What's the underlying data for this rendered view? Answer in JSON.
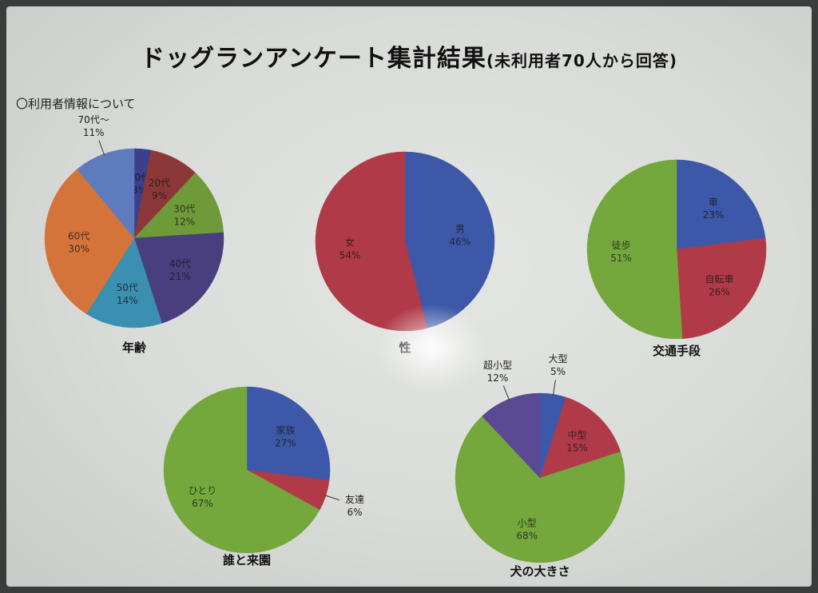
{
  "header": {
    "title": "ドッグランアンケート集計結果",
    "subtitle": "(未利用者70人から回答)",
    "section": "〇利用者情報について"
  },
  "chart_data": [
    {
      "type": "pie",
      "title": "年齢",
      "slices": [
        {
          "label": "10代",
          "value": 3,
          "color": "#3b3f8c"
        },
        {
          "label": "20代",
          "value": 9,
          "color": "#8c3838"
        },
        {
          "label": "30代",
          "value": 12,
          "color": "#6f9a3a"
        },
        {
          "label": "40代",
          "value": 21,
          "color": "#4a3f7e"
        },
        {
          "label": "50代",
          "value": 14,
          "color": "#3b8fb0"
        },
        {
          "label": "60代",
          "value": 30,
          "color": "#d4743a"
        },
        {
          "label": "70代〜",
          "value": 11,
          "color": "#5e7bbd"
        }
      ]
    },
    {
      "type": "pie",
      "title": "性",
      "slices": [
        {
          "label": "男",
          "value": 46,
          "color": "#3d58a8"
        },
        {
          "label": "女",
          "value": 54,
          "color": "#b03a48"
        }
      ]
    },
    {
      "type": "pie",
      "title": "交通手段",
      "slices": [
        {
          "label": "車",
          "value": 23,
          "color": "#3d58a8"
        },
        {
          "label": "自転車",
          "value": 26,
          "color": "#b03a48"
        },
        {
          "label": "徒歩",
          "value": 51,
          "color": "#74a83d"
        }
      ]
    },
    {
      "type": "pie",
      "title": "誰と来園",
      "slices": [
        {
          "label": "家族",
          "value": 27,
          "color": "#3d58a8"
        },
        {
          "label": "友達",
          "value": 6,
          "color": "#b03a48"
        },
        {
          "label": "ひとり",
          "value": 67,
          "color": "#74a83d"
        }
      ]
    },
    {
      "type": "pie",
      "title": "犬の大きさ",
      "slices": [
        {
          "label": "大型",
          "value": 5,
          "color": "#3d58a8"
        },
        {
          "label": "中型",
          "value": 15,
          "color": "#b03a48"
        },
        {
          "label": "小型",
          "value": 68,
          "color": "#74a83d"
        },
        {
          "label": "超小型",
          "value": 12,
          "color": "#5a4a94"
        }
      ]
    }
  ]
}
